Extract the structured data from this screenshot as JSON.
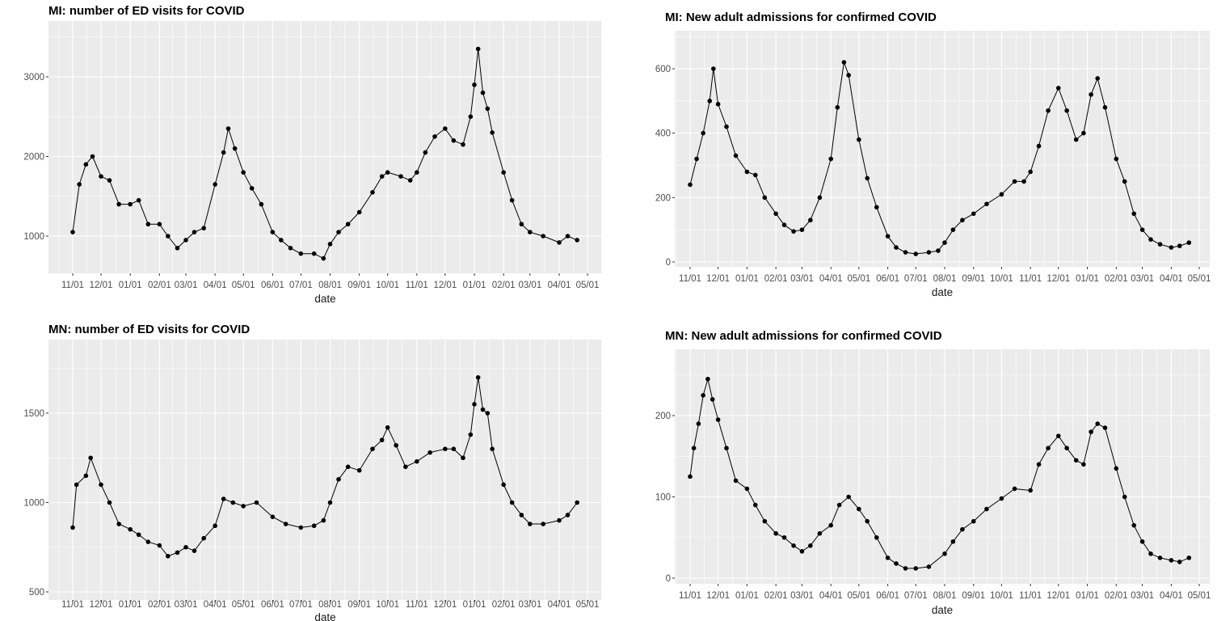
{
  "chart_data": [
    {
      "type": "line",
      "title": "MI: number of ED visits for COVID",
      "xlabel": "date",
      "ylabel": "",
      "markers": true,
      "grid": true,
      "ylim": [
        530,
        3700
      ],
      "y_ticks": [
        1000,
        2000,
        3000
      ],
      "x_tick_labels": [
        "11/01",
        "12/01",
        "01/01",
        "02/01",
        "03/01",
        "04/01",
        "05/01",
        "06/01",
        "07/01",
        "08/01",
        "09/01",
        "10/01",
        "11/01",
        "12/01",
        "01/01",
        "02/01",
        "03/01",
        "04/01",
        "05/01"
      ],
      "x": [
        "2020-11-01",
        "2020-11-08",
        "2020-11-15",
        "2020-11-22",
        "2020-12-01",
        "2020-12-10",
        "2020-12-20",
        "2021-01-01",
        "2021-01-10",
        "2021-01-20",
        "2021-02-01",
        "2021-02-10",
        "2021-02-20",
        "2021-03-01",
        "2021-03-10",
        "2021-03-20",
        "2021-04-01",
        "2021-04-10",
        "2021-04-15",
        "2021-04-22",
        "2021-05-01",
        "2021-05-10",
        "2021-05-20",
        "2021-06-01",
        "2021-06-10",
        "2021-06-20",
        "2021-07-01",
        "2021-07-15",
        "2021-07-25",
        "2021-08-01",
        "2021-08-10",
        "2021-08-20",
        "2021-09-01",
        "2021-09-15",
        "2021-09-25",
        "2021-10-01",
        "2021-10-15",
        "2021-10-25",
        "2021-11-01",
        "2021-11-10",
        "2021-11-20",
        "2021-12-01",
        "2021-12-10",
        "2021-12-20",
        "2021-12-28",
        "2022-01-01",
        "2022-01-05",
        "2022-01-10",
        "2022-01-15",
        "2022-01-20",
        "2022-02-01",
        "2022-02-10",
        "2022-02-20",
        "2022-03-01",
        "2022-03-15",
        "2022-04-01",
        "2022-04-10",
        "2022-04-20"
      ],
      "values": [
        1050,
        1650,
        1900,
        2000,
        1750,
        1700,
        1400,
        1400,
        1450,
        1150,
        1150,
        1000,
        850,
        950,
        1050,
        1100,
        1650,
        2050,
        2350,
        2100,
        1800,
        1600,
        1400,
        1050,
        950,
        850,
        780,
        780,
        720,
        900,
        1050,
        1150,
        1300,
        1550,
        1750,
        1800,
        1750,
        1700,
        1800,
        2050,
        2250,
        2350,
        2200,
        2150,
        2500,
        2900,
        3350,
        2800,
        2600,
        2300,
        1800,
        1450,
        1150,
        1050,
        1000,
        920,
        1000,
        950
      ]
    },
    {
      "type": "line",
      "title": "MI: New adult admissions for confirmed COVID",
      "xlabel": "date",
      "ylabel": "",
      "markers": true,
      "grid": true,
      "ylim": [
        -15,
        715
      ],
      "y_ticks": [
        0,
        200,
        400,
        600
      ],
      "x_tick_labels": [
        "11/01",
        "12/01",
        "01/01",
        "02/01",
        "03/01",
        "04/01",
        "05/01",
        "06/01",
        "07/01",
        "08/01",
        "09/01",
        "10/01",
        "11/01",
        "12/01",
        "01/01",
        "02/01",
        "03/01",
        "04/01",
        "05/01"
      ],
      "x": [
        "2020-11-01",
        "2020-11-08",
        "2020-11-15",
        "2020-11-22",
        "2020-11-26",
        "2020-12-01",
        "2020-12-10",
        "2020-12-20",
        "2021-01-01",
        "2021-01-10",
        "2021-01-20",
        "2021-02-01",
        "2021-02-10",
        "2021-02-20",
        "2021-03-01",
        "2021-03-10",
        "2021-03-20",
        "2021-04-01",
        "2021-04-08",
        "2021-04-15",
        "2021-04-20",
        "2021-05-01",
        "2021-05-10",
        "2021-05-20",
        "2021-06-01",
        "2021-06-10",
        "2021-06-20",
        "2021-07-01",
        "2021-07-15",
        "2021-07-25",
        "2021-08-01",
        "2021-08-10",
        "2021-08-20",
        "2021-09-01",
        "2021-09-15",
        "2021-10-01",
        "2021-10-15",
        "2021-10-25",
        "2021-11-01",
        "2021-11-10",
        "2021-11-20",
        "2021-12-01",
        "2021-12-10",
        "2021-12-20",
        "2021-12-28",
        "2022-01-05",
        "2022-01-12",
        "2022-01-20",
        "2022-02-01",
        "2022-02-10",
        "2022-02-20",
        "2022-03-01",
        "2022-03-10",
        "2022-03-20",
        "2022-04-01",
        "2022-04-10",
        "2022-04-20"
      ],
      "values": [
        240,
        320,
        400,
        500,
        600,
        490,
        420,
        330,
        280,
        270,
        200,
        150,
        115,
        95,
        100,
        130,
        200,
        320,
        480,
        620,
        580,
        380,
        260,
        170,
        80,
        45,
        30,
        25,
        30,
        35,
        60,
        100,
        130,
        150,
        180,
        210,
        250,
        250,
        280,
        360,
        470,
        540,
        470,
        380,
        400,
        520,
        570,
        480,
        320,
        250,
        150,
        100,
        70,
        55,
        45,
        50,
        60
      ]
    },
    {
      "type": "line",
      "title": "MN: number of ED visits for COVID",
      "xlabel": "date",
      "ylabel": "",
      "markers": true,
      "grid": true,
      "ylim": [
        500,
        1960
      ],
      "y_ticks": [
        500,
        1000,
        1500
      ],
      "x_tick_labels": [
        "11/01",
        "12/01",
        "01/01",
        "02/01",
        "03/01",
        "04/01",
        "05/01",
        "06/01",
        "07/01",
        "08/01",
        "09/01",
        "10/01",
        "11/01",
        "12/01",
        "01/01",
        "02/01",
        "03/01",
        "04/01",
        "05/01"
      ],
      "x": [
        "2020-11-01",
        "2020-11-05",
        "2020-11-15",
        "2020-11-20",
        "2020-12-01",
        "2020-12-10",
        "2020-12-20",
        "2021-01-01",
        "2021-01-10",
        "2021-01-20",
        "2021-02-01",
        "2021-02-10",
        "2021-02-20",
        "2021-03-01",
        "2021-03-10",
        "2021-03-20",
        "2021-04-01",
        "2021-04-10",
        "2021-04-20",
        "2021-05-01",
        "2021-05-15",
        "2021-06-01",
        "2021-06-15",
        "2021-07-01",
        "2021-07-15",
        "2021-07-25",
        "2021-08-01",
        "2021-08-10",
        "2021-08-20",
        "2021-09-01",
        "2021-09-15",
        "2021-09-25",
        "2021-10-01",
        "2021-10-10",
        "2021-10-20",
        "2021-11-01",
        "2021-11-15",
        "2021-12-01",
        "2021-12-10",
        "2021-12-20",
        "2021-12-28",
        "2022-01-01",
        "2022-01-05",
        "2022-01-10",
        "2022-01-15",
        "2022-01-20",
        "2022-02-01",
        "2022-02-10",
        "2022-02-20",
        "2022-03-01",
        "2022-03-15",
        "2022-04-01",
        "2022-04-10",
        "2022-04-20"
      ],
      "values": [
        860,
        1100,
        1150,
        1250,
        1100,
        1000,
        880,
        850,
        820,
        780,
        760,
        700,
        720,
        750,
        730,
        800,
        870,
        1020,
        1000,
        980,
        1000,
        920,
        880,
        860,
        870,
        900,
        1000,
        1130,
        1200,
        1180,
        1300,
        1350,
        1420,
        1320,
        1200,
        1230,
        1280,
        1300,
        1300,
        1250,
        1380,
        1550,
        1700,
        1520,
        1500,
        1300,
        1100,
        1000,
        930,
        880,
        880,
        900,
        930,
        1000
      ]
    },
    {
      "type": "line",
      "title": "MN: New adult admissions for confirmed COVID",
      "xlabel": "date",
      "ylabel": "",
      "markers": true,
      "grid": true,
      "ylim": [
        -8,
        280
      ],
      "y_ticks": [
        0,
        100,
        200
      ],
      "x_tick_labels": [
        "11/01",
        "12/01",
        "01/01",
        "02/01",
        "03/01",
        "04/01",
        "05/01",
        "06/01",
        "07/01",
        "08/01",
        "09/01",
        "10/01",
        "11/01",
        "12/01",
        "01/01",
        "02/01",
        "03/01",
        "04/01",
        "05/01"
      ],
      "x": [
        "2020-11-01",
        "2020-11-05",
        "2020-11-10",
        "2020-11-15",
        "2020-11-20",
        "2020-11-25",
        "2020-12-01",
        "2020-12-10",
        "2020-12-20",
        "2021-01-01",
        "2021-01-10",
        "2021-01-20",
        "2021-02-01",
        "2021-02-10",
        "2021-02-20",
        "2021-03-01",
        "2021-03-10",
        "2021-03-20",
        "2021-04-01",
        "2021-04-10",
        "2021-04-20",
        "2021-05-01",
        "2021-05-10",
        "2021-05-20",
        "2021-06-01",
        "2021-06-10",
        "2021-06-20",
        "2021-07-01",
        "2021-07-15",
        "2021-08-01",
        "2021-08-10",
        "2021-08-20",
        "2021-09-01",
        "2021-09-15",
        "2021-10-01",
        "2021-10-15",
        "2021-11-01",
        "2021-11-10",
        "2021-11-20",
        "2021-12-01",
        "2021-12-10",
        "2021-12-20",
        "2021-12-28",
        "2022-01-05",
        "2022-01-12",
        "2022-01-20",
        "2022-02-01",
        "2022-02-10",
        "2022-02-20",
        "2022-03-01",
        "2022-03-10",
        "2022-03-20",
        "2022-04-01",
        "2022-04-10",
        "2022-04-20"
      ],
      "values": [
        125,
        160,
        190,
        225,
        245,
        220,
        195,
        160,
        120,
        110,
        90,
        70,
        55,
        50,
        40,
        33,
        40,
        55,
        65,
        90,
        100,
        85,
        70,
        50,
        25,
        18,
        12,
        12,
        14,
        30,
        45,
        60,
        70,
        85,
        98,
        110,
        108,
        140,
        160,
        175,
        160,
        145,
        140,
        180,
        190,
        185,
        135,
        100,
        65,
        45,
        30,
        25,
        22,
        20,
        25
      ]
    }
  ],
  "colors": {
    "panel": "#ebebeb",
    "grid": "#ffffff",
    "series": "#000000",
    "tick_text": "#4d4d4d"
  }
}
